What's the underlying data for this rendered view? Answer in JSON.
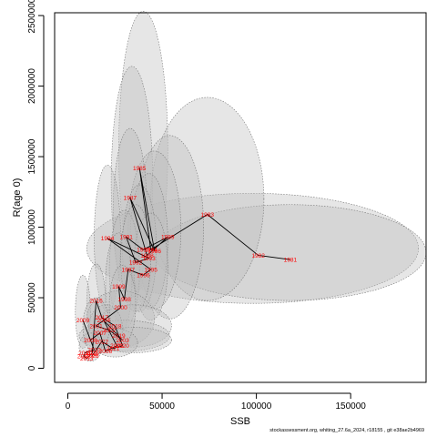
{
  "chart_data": {
    "type": "scatter",
    "xlabel": "SSB",
    "ylabel": "R(age 0)",
    "xlim": [
      -7000,
      190000
    ],
    "ylim": [
      -100000,
      2520000
    ],
    "x_ticks": [
      0,
      50000,
      100000,
      150000
    ],
    "x_tick_labels": [
      "0",
      "50000",
      "100000",
      "150000"
    ],
    "y_ticks": [
      0,
      500000,
      1000000,
      1500000,
      2000000,
      2500000
    ],
    "y_tick_labels": [
      "0",
      "500000",
      "1000000",
      "1500000",
      "2000000",
      "2500000"
    ],
    "grid": false,
    "colors": {
      "label": "#ff0000",
      "path": "#000000",
      "ellipse_fill": "#bdbdbd",
      "ellipse_stroke": "#777777"
    },
    "points": [
      {
        "year": "1981",
        "x": 118000,
        "y": 770000
      },
      {
        "year": "1982",
        "x": 101000,
        "y": 800000
      },
      {
        "year": "1983",
        "x": 74000,
        "y": 1090000
      },
      {
        "year": "1984",
        "x": 44000,
        "y": 840000
      },
      {
        "year": "1985",
        "x": 38000,
        "y": 1420000
      },
      {
        "year": "1986",
        "x": 46000,
        "y": 830000
      },
      {
        "year": "1987",
        "x": 33000,
        "y": 1210000
      },
      {
        "year": "1988",
        "x": 42000,
        "y": 800000
      },
      {
        "year": "1989",
        "x": 53000,
        "y": 930000
      },
      {
        "year": "1990",
        "x": 40000,
        "y": 840000
      },
      {
        "year": "1991",
        "x": 31000,
        "y": 930000
      },
      {
        "year": "1992",
        "x": 36000,
        "y": 750000
      },
      {
        "year": "1993",
        "x": 43000,
        "y": 780000
      },
      {
        "year": "1994",
        "x": 21000,
        "y": 920000
      },
      {
        "year": "1995",
        "x": 44000,
        "y": 700000
      },
      {
        "year": "1996",
        "x": 40000,
        "y": 660000
      },
      {
        "year": "1997",
        "x": 32000,
        "y": 700000
      },
      {
        "year": "1998",
        "x": 30000,
        "y": 490000
      },
      {
        "year": "1999",
        "x": 27000,
        "y": 580000
      },
      {
        "year": "2000",
        "x": 28000,
        "y": 430000
      },
      {
        "year": "2001",
        "x": 15000,
        "y": 300000
      },
      {
        "year": "2002",
        "x": 22000,
        "y": 270000
      },
      {
        "year": "2003",
        "x": 29000,
        "y": 200000
      },
      {
        "year": "2004",
        "x": 19000,
        "y": 340000
      },
      {
        "year": "2005",
        "x": 26000,
        "y": 160000
      },
      {
        "year": "2006",
        "x": 20000,
        "y": 120000
      },
      {
        "year": "2007",
        "x": 17000,
        "y": 250000
      },
      {
        "year": "2008",
        "x": 12000,
        "y": 200000
      },
      {
        "year": "2009",
        "x": 8000,
        "y": 340000
      },
      {
        "year": "2010",
        "x": 14000,
        "y": 130000
      },
      {
        "year": "2011",
        "x": 9000,
        "y": 110000
      },
      {
        "year": "2012",
        "x": 8500,
        "y": 85000
      },
      {
        "year": "2013",
        "x": 10000,
        "y": 70000
      },
      {
        "year": "2014",
        "x": 12000,
        "y": 95000
      },
      {
        "year": "2015",
        "x": 13000,
        "y": 110000
      },
      {
        "year": "2016",
        "x": 15000,
        "y": 480000
      },
      {
        "year": "2017",
        "x": 18000,
        "y": 360000
      },
      {
        "year": "2018",
        "x": 25000,
        "y": 300000
      },
      {
        "year": "2019",
        "x": 27000,
        "y": 230000
      },
      {
        "year": "2020",
        "x": 29000,
        "y": 160000
      },
      {
        "year": "2021",
        "x": 24000,
        "y": 140000
      },
      {
        "year": "2022",
        "x": 18000,
        "y": 190000
      },
      {
        "year": "2023",
        "x": 13000,
        "y": 90000
      }
    ],
    "ellipses": [
      {
        "cx": 40000,
        "cy": 1550000,
        "rx": 13000,
        "ry": 980000,
        "angle": 0
      },
      {
        "cx": 34000,
        "cy": 1320000,
        "rx": 11000,
        "ry": 820000,
        "angle": 0
      },
      {
        "cx": 98000,
        "cy": 850000,
        "rx": 88000,
        "ry": 390000,
        "angle": 0
      },
      {
        "cx": 118000,
        "cy": 820000,
        "rx": 72000,
        "ry": 340000,
        "angle": 0
      },
      {
        "cx": 74000,
        "cy": 1200000,
        "rx": 30000,
        "ry": 720000,
        "angle": 0
      },
      {
        "cx": 54000,
        "cy": 1000000,
        "rx": 18000,
        "ry": 650000,
        "angle": 0
      },
      {
        "cx": 46000,
        "cy": 980000,
        "rx": 14000,
        "ry": 560000,
        "angle": 0
      },
      {
        "cx": 33000,
        "cy": 1100000,
        "rx": 9000,
        "ry": 600000,
        "angle": 0
      },
      {
        "cx": 21000,
        "cy": 920000,
        "rx": 7000,
        "ry": 520000,
        "angle": 0
      },
      {
        "cx": 43000,
        "cy": 900000,
        "rx": 10000,
        "ry": 480000,
        "angle": 0
      },
      {
        "cx": 38000,
        "cy": 850000,
        "rx": 9000,
        "ry": 450000,
        "angle": 0
      },
      {
        "cx": 30000,
        "cy": 700000,
        "rx": 8000,
        "ry": 420000,
        "angle": 0
      },
      {
        "cx": 27000,
        "cy": 600000,
        "rx": 7000,
        "ry": 360000,
        "angle": 0
      },
      {
        "cx": 44000,
        "cy": 720000,
        "rx": 9000,
        "ry": 380000,
        "angle": 0
      },
      {
        "cx": 36000,
        "cy": 780000,
        "rx": 8000,
        "ry": 380000,
        "angle": 0
      },
      {
        "cx": 15000,
        "cy": 470000,
        "rx": 5000,
        "ry": 270000,
        "angle": 0
      },
      {
        "cx": 8000,
        "cy": 400000,
        "rx": 4000,
        "ry": 260000,
        "angle": 0
      },
      {
        "cx": 28000,
        "cy": 350000,
        "rx": 18000,
        "ry": 200000,
        "angle": 0
      },
      {
        "cx": 35000,
        "cy": 300000,
        "rx": 20000,
        "ry": 150000,
        "angle": 0
      },
      {
        "cx": 30000,
        "cy": 230000,
        "rx": 24000,
        "ry": 110000,
        "angle": 0
      },
      {
        "cx": 35000,
        "cy": 200000,
        "rx": 20000,
        "ry": 90000,
        "angle": 0
      },
      {
        "cx": 20000,
        "cy": 280000,
        "rx": 9000,
        "ry": 170000,
        "angle": 0
      },
      {
        "cx": 25000,
        "cy": 180000,
        "rx": 12000,
        "ry": 100000,
        "angle": 0
      },
      {
        "cx": 12000,
        "cy": 150000,
        "rx": 6000,
        "ry": 100000,
        "angle": 0
      },
      {
        "cx": 15000,
        "cy": 300000,
        "rx": 7000,
        "ry": 200000,
        "angle": 0
      },
      {
        "cx": 29000,
        "cy": 450000,
        "rx": 7000,
        "ry": 280000,
        "angle": 0
      }
    ]
  },
  "footnote": "stockassessment.org, whiting_27.6a_2024, r18155 , git e38ae2b4969"
}
